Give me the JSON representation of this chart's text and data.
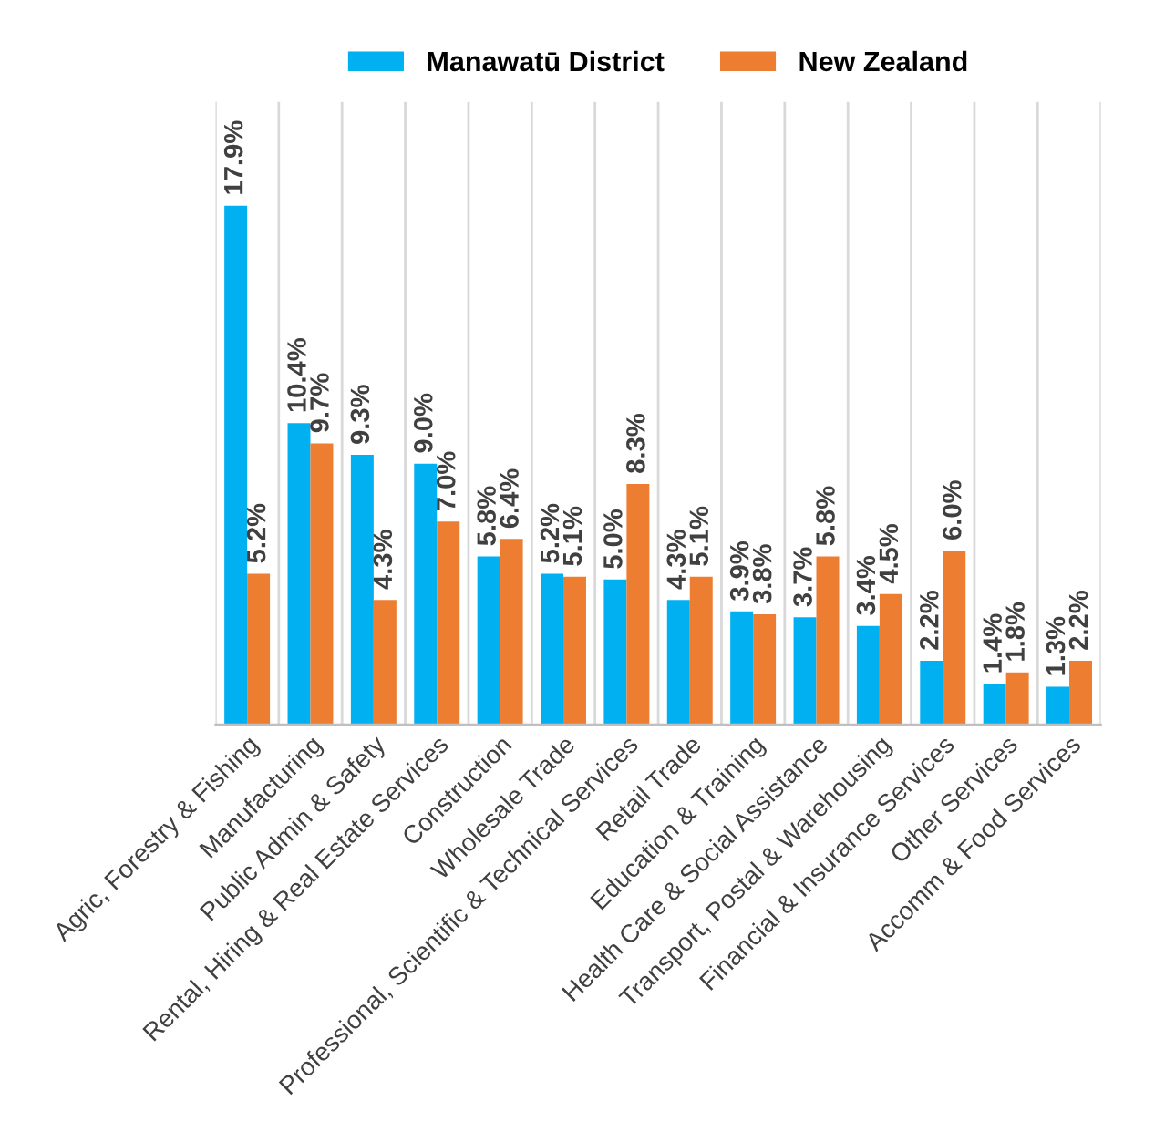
{
  "chart_data": {
    "type": "bar",
    "categories": [
      "Agric, Forestry & Fishing",
      "Manufacturing",
      "Public Admin & Safety",
      "Rental, Hiring & Real Estate Services",
      "Construction",
      "Wholesale Trade",
      "Professional, Scientific & Technical Services",
      "Retail Trade",
      "Education & Training",
      "Health Care & Social Assistance",
      "Transport, Postal & Warehousing",
      "Financial & Insurance Services",
      "Other Services",
      "Accomm & Food Services"
    ],
    "series": [
      {
        "name": "Manawatū District",
        "color": "#00b0f0",
        "values": [
          17.9,
          10.4,
          9.3,
          9.0,
          5.8,
          5.2,
          5.0,
          4.3,
          3.9,
          3.7,
          3.4,
          2.2,
          1.4,
          1.3
        ],
        "value_labels": [
          "17.9%",
          "10.4%",
          "9.3%",
          "9.0%",
          "5.8%",
          "5.2%",
          "5.0%",
          "4.3%",
          "3.9%",
          "3.7%",
          "3.4%",
          "2.2%",
          "1.4%",
          "1.3%"
        ]
      },
      {
        "name": "New Zealand",
        "color": "#ed7d31",
        "values": [
          5.2,
          9.7,
          4.3,
          7.0,
          6.4,
          5.1,
          8.3,
          5.1,
          3.8,
          5.8,
          4.5,
          6.0,
          1.8,
          2.2
        ],
        "value_labels": [
          "5.2%",
          "9.7%",
          "4.3%",
          "7.0%",
          "6.4%",
          "5.1%",
          "8.3%",
          "5.1%",
          "3.8%",
          "5.8%",
          "4.5%",
          "6.0%",
          "1.8%",
          "2.2%"
        ]
      }
    ],
    "grid": "x",
    "legend": "top",
    "tick_labels": "x"
  }
}
